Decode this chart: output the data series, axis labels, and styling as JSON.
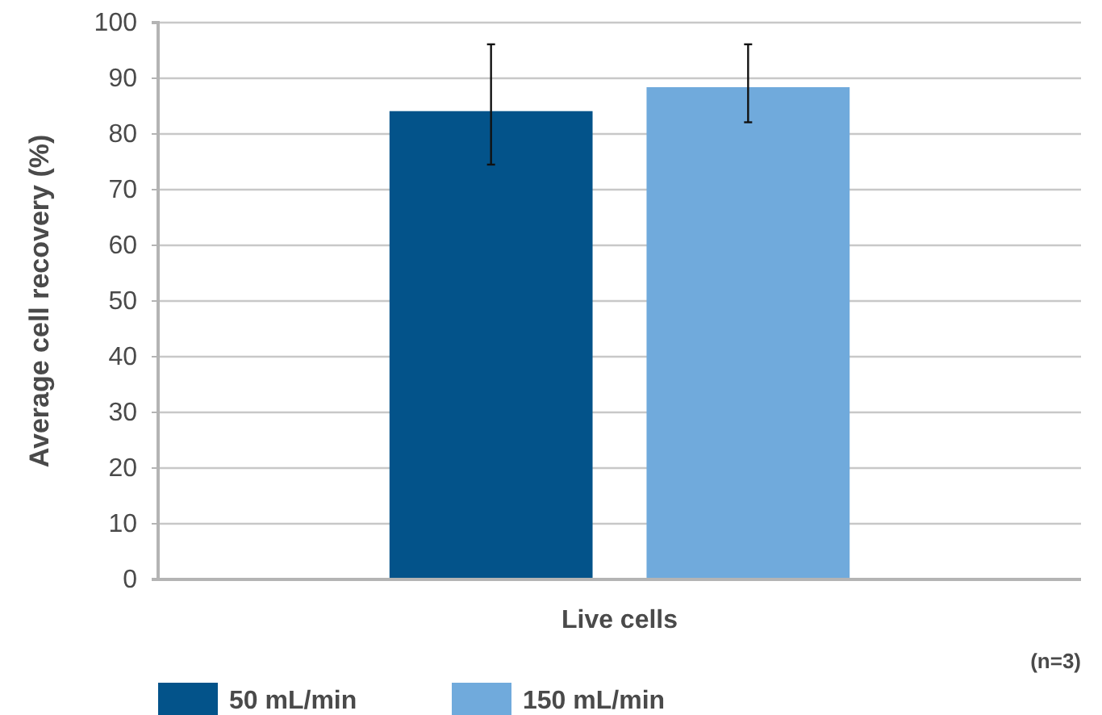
{
  "chart_data": {
    "type": "bar",
    "ylabel": "Average cell recovery (%)",
    "categories": [
      "Live cells"
    ],
    "series": [
      {
        "name": "50 mL/min",
        "color": "#03538a",
        "values": [
          84.1
        ],
        "errors": [
          [
            74.5,
            96.1
          ]
        ]
      },
      {
        "name": "150 mL/min",
        "color": "#70aadc",
        "values": [
          88.4
        ],
        "errors": [
          [
            82.1,
            96.1
          ]
        ]
      }
    ],
    "ylim": [
      0,
      100
    ],
    "yticks": [
      0,
      10,
      20,
      30,
      40,
      50,
      60,
      70,
      80,
      90,
      100
    ],
    "grid": "y",
    "legend": "bottom",
    "annotations": [
      "(n=3)"
    ]
  }
}
